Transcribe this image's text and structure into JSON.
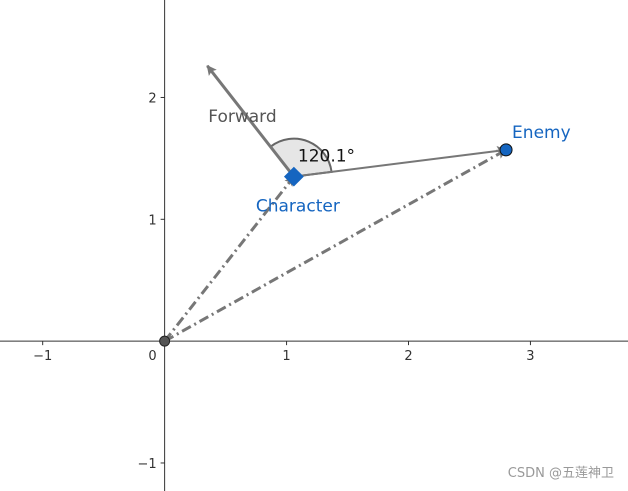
{
  "axes": {
    "x_ticks": [
      -1,
      1,
      2,
      3
    ],
    "x_tick_labels": [
      "−1",
      "1",
      "2",
      "3"
    ],
    "y_ticks": [
      -1,
      1,
      2
    ],
    "y_tick_labels": [
      "−1",
      "1",
      "2"
    ],
    "origin_label": "0",
    "xlim": [
      -1.35,
      3.8
    ],
    "ylim": [
      -1.23,
      2.8
    ]
  },
  "points": {
    "origin": {
      "x": 0,
      "y": 0,
      "color": "#555555"
    },
    "character": {
      "x": 1.06,
      "y": 1.35,
      "label": "Character",
      "color": "#1565c0"
    },
    "enemy": {
      "x": 2.8,
      "y": 1.57,
      "label": "Enemy",
      "color": "#1565c0"
    },
    "forward_tip": {
      "x": 0.35,
      "y": 2.26,
      "label": "Forward"
    }
  },
  "angle": {
    "label": "120.1°"
  },
  "colors": {
    "vector": "#777777",
    "dashed": "#777777",
    "sector_fill": "#e6e6e6",
    "sector_stroke": "#666666",
    "label_blue": "#1565c0",
    "label_gray": "#555555"
  },
  "watermark": "CSDN @五莲神卫"
}
